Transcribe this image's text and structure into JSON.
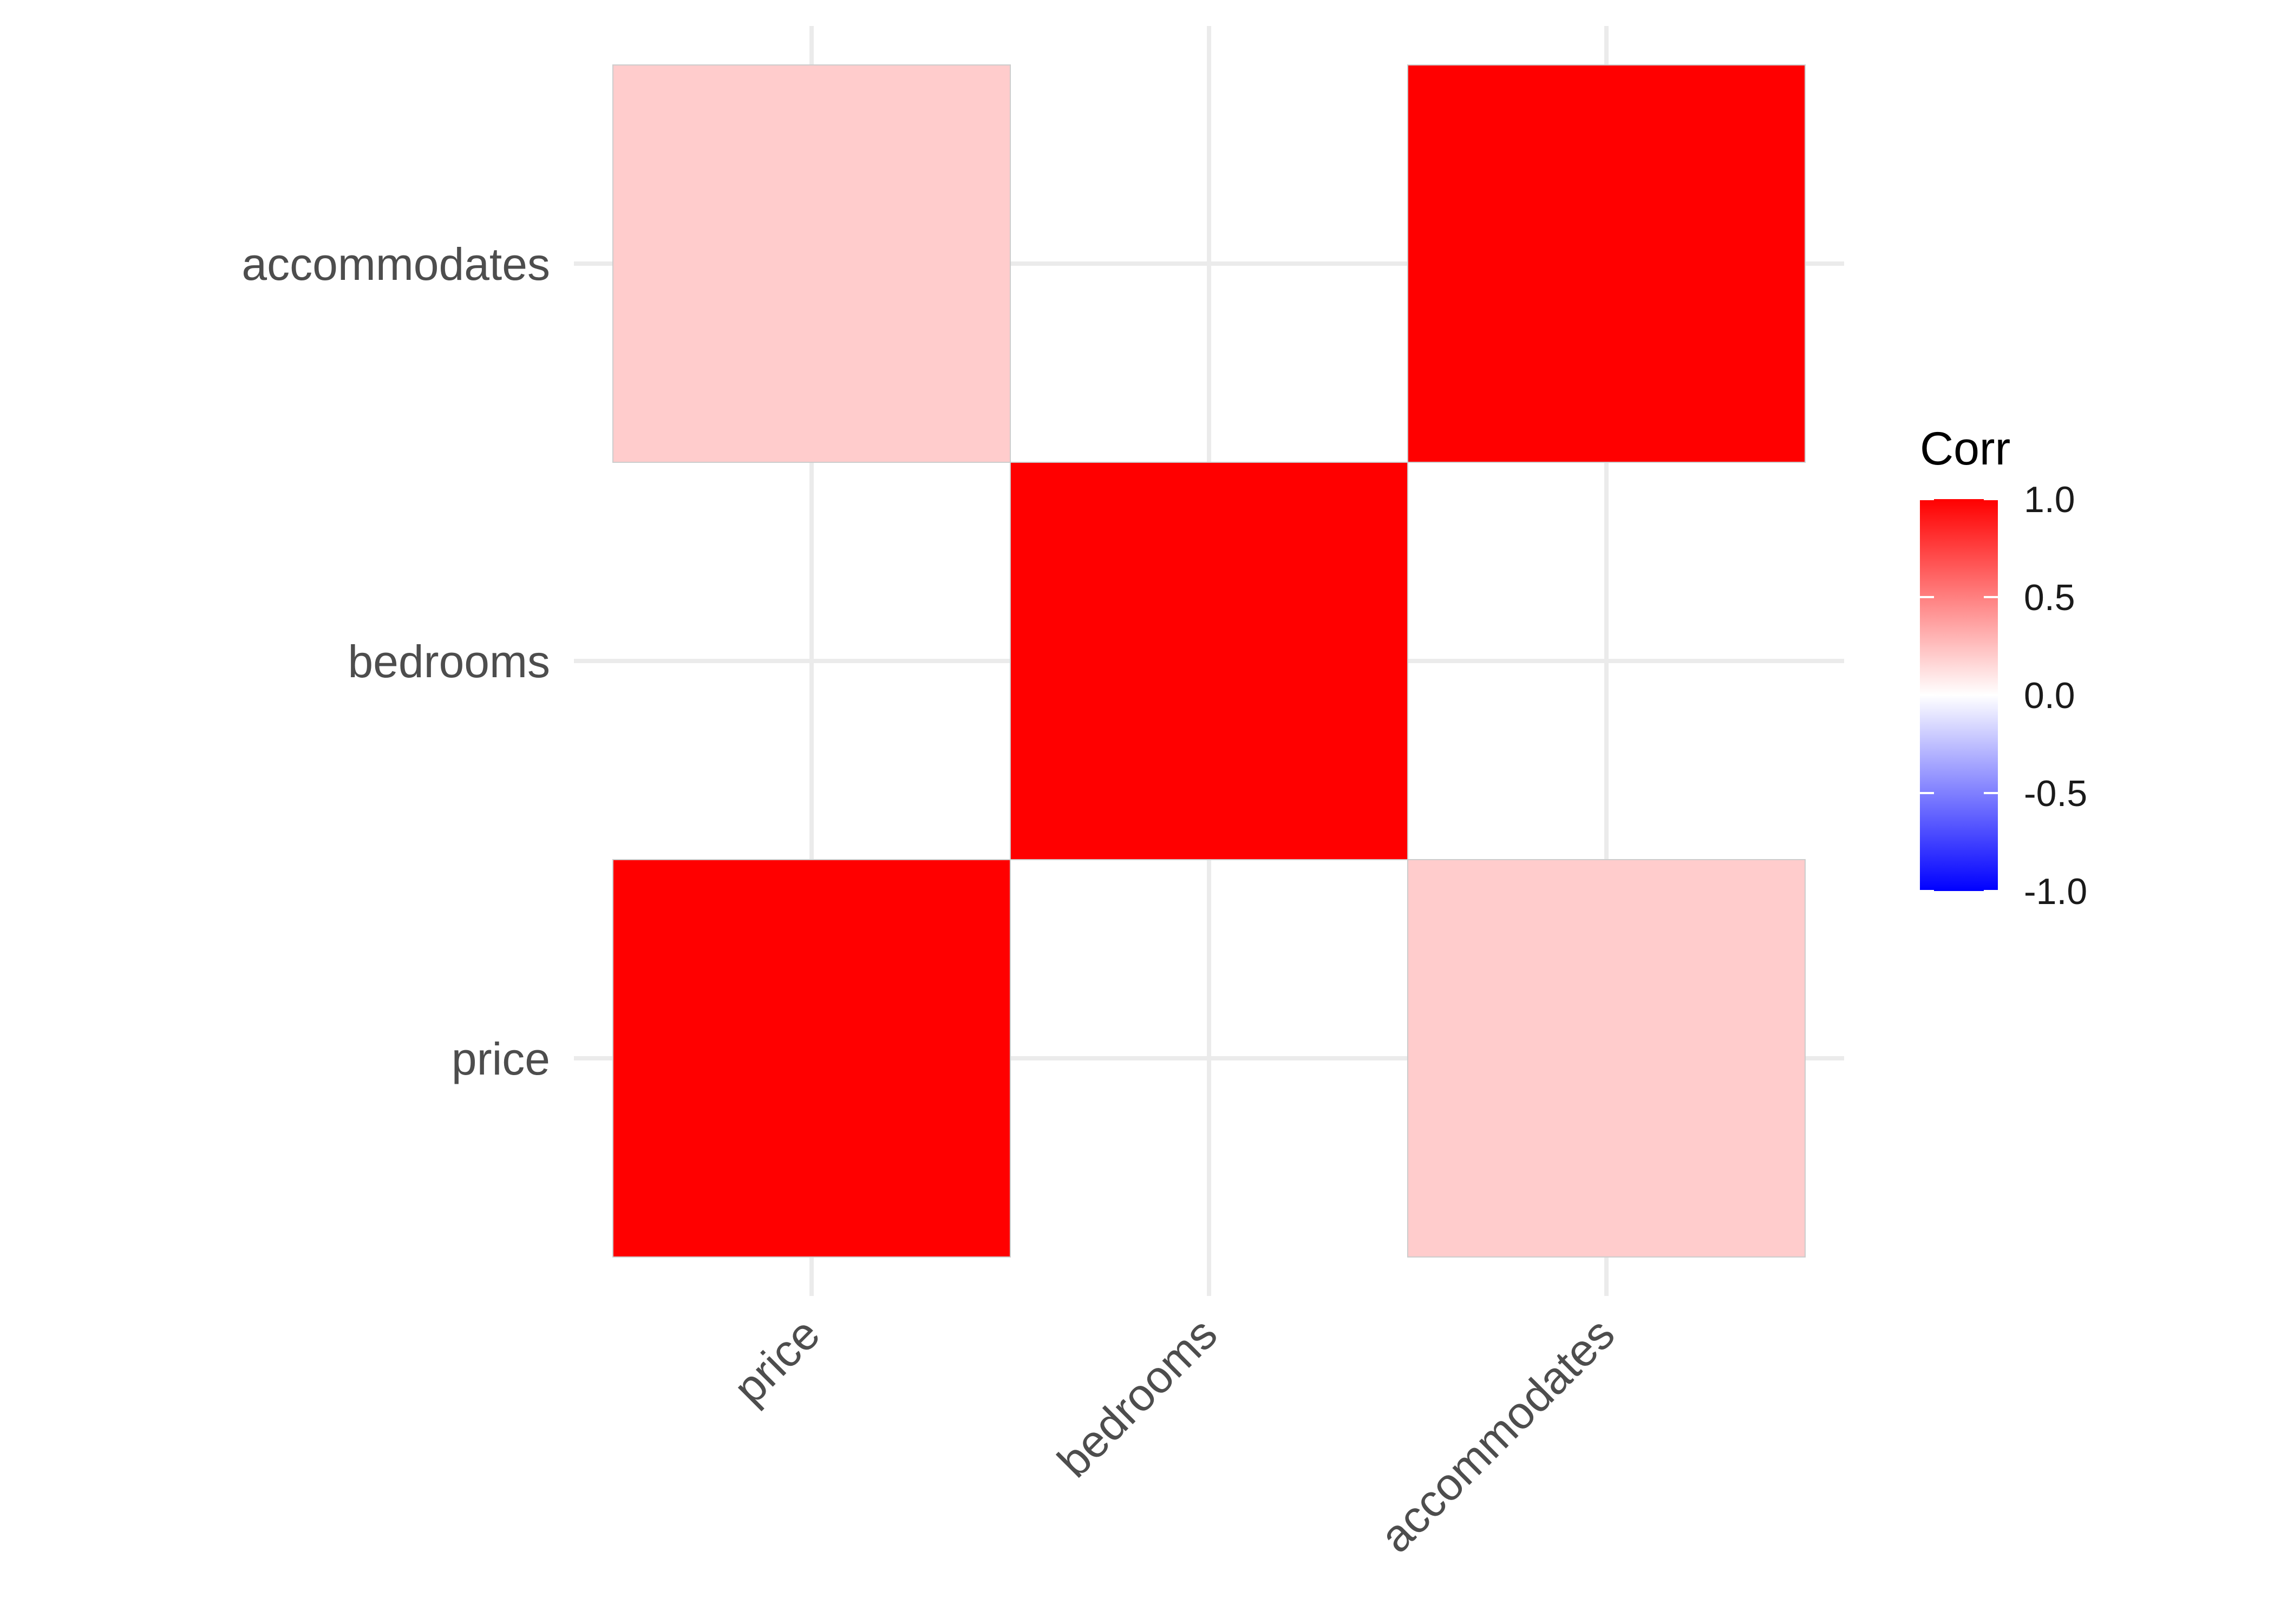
{
  "chart_data": {
    "type": "heatmap",
    "x_categories": [
      "price",
      "bedrooms",
      "accommodates"
    ],
    "y_categories": [
      "price",
      "bedrooms",
      "accommodates"
    ],
    "cells": [
      {
        "x": "price",
        "y": "price",
        "value": 1.0
      },
      {
        "x": "accommodates",
        "y": "price",
        "value": 0.2
      },
      {
        "x": "bedrooms",
        "y": "bedrooms",
        "value": 1.0
      },
      {
        "x": "price",
        "y": "accommodates",
        "value": 0.2
      },
      {
        "x": "accommodates",
        "y": "accommodates",
        "value": 1.0
      }
    ],
    "legend": {
      "title": "Corr",
      "position": "right",
      "range": [
        -1,
        1
      ],
      "ticks": [
        "1.0",
        "0.5",
        "0.0",
        "-0.5",
        "-1.0"
      ],
      "tick_values": [
        1.0,
        0.5,
        0.0,
        -0.5,
        -1.0
      ]
    },
    "colors": {
      "low": "#0000ff",
      "mid": "#ffffff",
      "high": "#ff0000"
    },
    "grid": true
  }
}
